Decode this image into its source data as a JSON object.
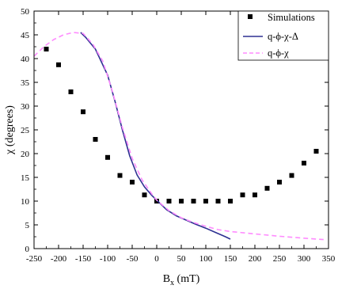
{
  "chart_data": {
    "type": "line",
    "title": "",
    "xlabel_main": "B",
    "xlabel_sub": "x",
    "xlabel_unit": " (mT)",
    "ylabel": "χ (degrees)",
    "xlim": [
      -250,
      350
    ],
    "ylim": [
      0,
      50
    ],
    "xticks": [
      -250,
      -200,
      -150,
      -100,
      -50,
      0,
      50,
      100,
      150,
      200,
      250,
      300,
      350
    ],
    "yticks": [
      0,
      5,
      10,
      15,
      20,
      25,
      30,
      35,
      40,
      45,
      50
    ],
    "grid": false,
    "legend_position": "top-right",
    "series": [
      {
        "name": "Simulations",
        "style": "markers",
        "marker": "square",
        "color": "#000000",
        "points": [
          [
            -225,
            42
          ],
          [
            -200,
            38.7
          ],
          [
            -175,
            33
          ],
          [
            -150,
            28.8
          ],
          [
            -125,
            23
          ],
          [
            -100,
            19.2
          ],
          [
            -75,
            15.4
          ],
          [
            -50,
            14
          ],
          [
            -25,
            11.3
          ],
          [
            0,
            10
          ],
          [
            25,
            10
          ],
          [
            50,
            10
          ],
          [
            75,
            10
          ],
          [
            100,
            10
          ],
          [
            125,
            10
          ],
          [
            150,
            10
          ],
          [
            175,
            11.3
          ],
          [
            200,
            11.3
          ],
          [
            225,
            12.7
          ],
          [
            250,
            14
          ],
          [
            275,
            15.4
          ],
          [
            300,
            18
          ],
          [
            325,
            20.5
          ]
        ]
      },
      {
        "name": "q-ϕ-χ-Δ",
        "style": "solid",
        "color": "#2e3192",
        "points": [
          [
            -155,
            45.5
          ],
          [
            -145,
            44.5
          ],
          [
            -125,
            42
          ],
          [
            -100,
            36.5
          ],
          [
            -85,
            31
          ],
          [
            -70,
            25
          ],
          [
            -55,
            19.5
          ],
          [
            -40,
            15.5
          ],
          [
            -25,
            13
          ],
          [
            -10,
            11.2
          ],
          [
            0,
            10.2
          ],
          [
            20,
            8.2
          ],
          [
            40,
            6.9
          ],
          [
            60,
            6
          ],
          [
            80,
            5.1
          ],
          [
            100,
            4.3
          ],
          [
            120,
            3.4
          ],
          [
            140,
            2.5
          ],
          [
            150,
            2
          ]
        ]
      },
      {
        "name": "q-ϕ-χ",
        "style": "dashed",
        "color": "#ff8cff",
        "points": [
          [
            -250,
            40.5
          ],
          [
            -230,
            42.5
          ],
          [
            -210,
            44
          ],
          [
            -190,
            45
          ],
          [
            -170,
            45.5
          ],
          [
            -150,
            45.3
          ],
          [
            -130,
            43
          ],
          [
            -110,
            39.5
          ],
          [
            -90,
            33
          ],
          [
            -70,
            25.5
          ],
          [
            -50,
            19
          ],
          [
            -30,
            14.5
          ],
          [
            -10,
            11.5
          ],
          [
            0,
            10.2
          ],
          [
            25,
            8
          ],
          [
            50,
            6.5
          ],
          [
            75,
            5.5
          ],
          [
            100,
            4.7
          ],
          [
            125,
            4
          ],
          [
            150,
            3.6
          ],
          [
            200,
            3.1
          ],
          [
            250,
            2.6
          ],
          [
            300,
            2.2
          ],
          [
            340,
            1.9
          ]
        ]
      }
    ]
  }
}
